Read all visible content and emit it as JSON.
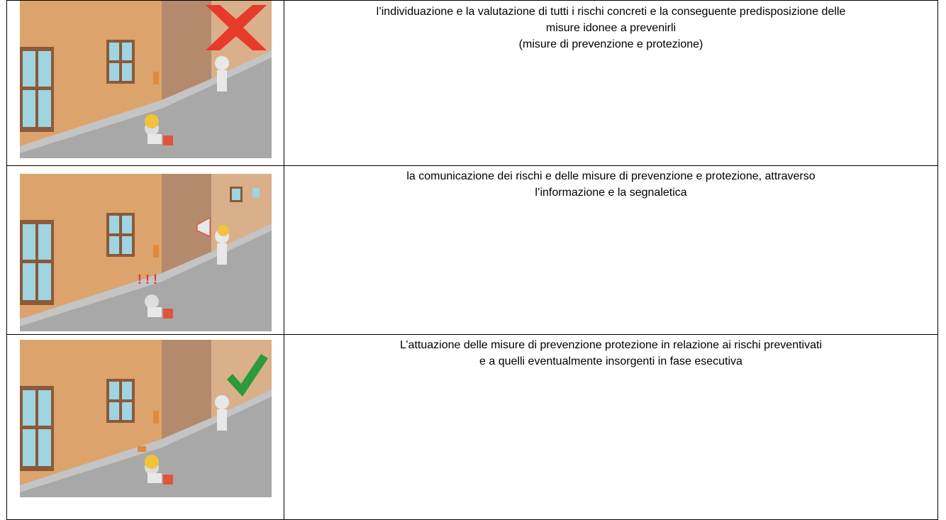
{
  "table": {
    "rows": [
      {
        "text": [
          "l’individuazione e la valutazione di tutti i rischi concreti e la conseguente predisposizione delle",
          "misure idonee a prevenirli",
          "(misure di prevenzione e protezione)"
        ]
      },
      {
        "text": [
          "la comunicazione dei rischi e delle misure di prevenzione e protezione, attraverso",
          "l’informazione e la segnaletica"
        ]
      },
      {
        "text": [
          "L’attuazione delle misure di prevenzione protezione in relazione ai rischi preventivati",
          "e a quelli eventualmente insorgenti in fase esecutiva"
        ]
      }
    ]
  }
}
